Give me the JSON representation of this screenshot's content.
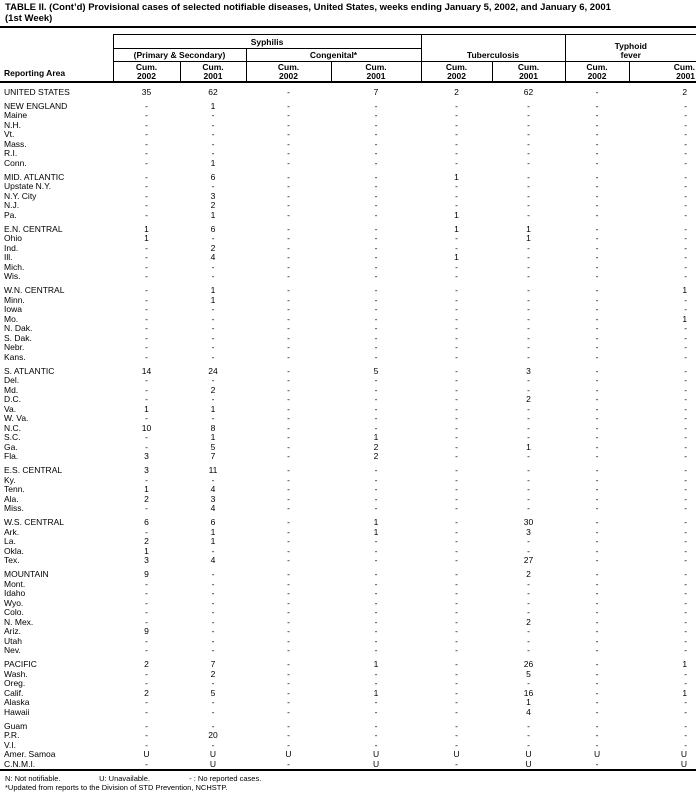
{
  "title": {
    "line1": "TABLE II. (Cont’d) Provisional cases of selected notifiable diseases, United States, weeks ending January 5, 2002, and January 6, 2001",
    "line2": "(1st Week)"
  },
  "header": {
    "reporting_area": "Reporting Area",
    "syphilis": "Syphilis",
    "primary_secondary": "(Primary & Secondary)",
    "congenital": "Congenital*",
    "tuberculosis": "Tuberculosis",
    "typhoid_line1": "Typhoid",
    "typhoid_line2": "fever",
    "cum_label": "Cum.",
    "years": [
      "2002",
      "2001",
      "2002",
      "2001",
      "2002",
      "2001",
      "2002",
      "2001"
    ]
  },
  "table": {
    "sections": [
      {
        "rows": [
          {
            "area": "UNITED STATES",
            "values": [
              "35",
              "62",
              "-",
              "7",
              "2",
              "62",
              "-",
              "2"
            ]
          }
        ]
      },
      {
        "rows": [
          {
            "area": "NEW ENGLAND",
            "values": [
              "-",
              "1",
              "-",
              "-",
              "-",
              "-",
              "-",
              "-"
            ]
          },
          {
            "area": "Maine",
            "values": [
              "-",
              "-",
              "-",
              "-",
              "-",
              "-",
              "-",
              "-"
            ]
          },
          {
            "area": "N.H.",
            "values": [
              "-",
              "-",
              "-",
              "-",
              "-",
              "-",
              "-",
              "-"
            ]
          },
          {
            "area": "Vt.",
            "values": [
              "-",
              "-",
              "-",
              "-",
              "-",
              "-",
              "-",
              "-"
            ]
          },
          {
            "area": "Mass.",
            "values": [
              "-",
              "-",
              "-",
              "-",
              "-",
              "-",
              "-",
              "-"
            ]
          },
          {
            "area": "R.I.",
            "values": [
              "-",
              "-",
              "-",
              "-",
              "-",
              "-",
              "-",
              "-"
            ]
          },
          {
            "area": "Conn.",
            "values": [
              "-",
              "1",
              "-",
              "-",
              "-",
              "-",
              "-",
              "-"
            ]
          }
        ]
      },
      {
        "rows": [
          {
            "area": "MID. ATLANTIC",
            "values": [
              "-",
              "6",
              "-",
              "-",
              "1",
              "-",
              "-",
              "-"
            ]
          },
          {
            "area": "Upstate N.Y.",
            "values": [
              "-",
              "-",
              "-",
              "-",
              "-",
              "-",
              "-",
              "-"
            ]
          },
          {
            "area": "N.Y. City",
            "values": [
              "-",
              "3",
              "-",
              "-",
              "-",
              "-",
              "-",
              "-"
            ]
          },
          {
            "area": "N.J.",
            "values": [
              "-",
              "2",
              "-",
              "-",
              "-",
              "-",
              "-",
              "-"
            ]
          },
          {
            "area": "Pa.",
            "values": [
              "-",
              "1",
              "-",
              "-",
              "1",
              "-",
              "-",
              "-"
            ]
          }
        ]
      },
      {
        "rows": [
          {
            "area": "E.N. CENTRAL",
            "values": [
              "1",
              "6",
              "-",
              "-",
              "1",
              "1",
              "-",
              "-"
            ]
          },
          {
            "area": "Ohio",
            "values": [
              "1",
              "-",
              "-",
              "-",
              "-",
              "1",
              "-",
              "-"
            ]
          },
          {
            "area": "Ind.",
            "values": [
              "-",
              "2",
              "-",
              "-",
              "-",
              "-",
              "-",
              "-"
            ]
          },
          {
            "area": "Ill.",
            "values": [
              "-",
              "4",
              "-",
              "-",
              "1",
              "-",
              "-",
              "-"
            ]
          },
          {
            "area": "Mich.",
            "values": [
              "-",
              "-",
              "-",
              "-",
              "-",
              "-",
              "-",
              "-"
            ]
          },
          {
            "area": "Wis.",
            "values": [
              "-",
              "-",
              "-",
              "-",
              "-",
              "-",
              "-",
              "-"
            ]
          }
        ]
      },
      {
        "rows": [
          {
            "area": "W.N. CENTRAL",
            "values": [
              "-",
              "1",
              "-",
              "-",
              "-",
              "-",
              "-",
              "1"
            ]
          },
          {
            "area": "Minn.",
            "values": [
              "-",
              "1",
              "-",
              "-",
              "-",
              "-",
              "-",
              "-"
            ]
          },
          {
            "area": "Iowa",
            "values": [
              "-",
              "-",
              "-",
              "-",
              "-",
              "-",
              "-",
              "-"
            ]
          },
          {
            "area": "Mo.",
            "values": [
              "-",
              "-",
              "-",
              "-",
              "-",
              "-",
              "-",
              "1"
            ]
          },
          {
            "area": "N. Dak.",
            "values": [
              "-",
              "-",
              "-",
              "-",
              "-",
              "-",
              "-",
              "-"
            ]
          },
          {
            "area": "S. Dak.",
            "values": [
              "-",
              "-",
              "-",
              "-",
              "-",
              "-",
              "-",
              "-"
            ]
          },
          {
            "area": "Nebr.",
            "values": [
              "-",
              "-",
              "-",
              "-",
              "-",
              "-",
              "-",
              "-"
            ]
          },
          {
            "area": "Kans.",
            "values": [
              "-",
              "-",
              "-",
              "-",
              "-",
              "-",
              "-",
              "-"
            ]
          }
        ]
      },
      {
        "rows": [
          {
            "area": "S. ATLANTIC",
            "values": [
              "14",
              "24",
              "-",
              "5",
              "-",
              "3",
              "-",
              "-"
            ]
          },
          {
            "area": "Del.",
            "values": [
              "-",
              "-",
              "-",
              "-",
              "-",
              "-",
              "-",
              "-"
            ]
          },
          {
            "area": "Md.",
            "values": [
              "-",
              "2",
              "-",
              "-",
              "-",
              "-",
              "-",
              "-"
            ]
          },
          {
            "area": "D.C.",
            "values": [
              "-",
              "-",
              "-",
              "-",
              "-",
              "2",
              "-",
              "-"
            ]
          },
          {
            "area": "Va.",
            "values": [
              "1",
              "1",
              "-",
              "-",
              "-",
              "-",
              "-",
              "-"
            ]
          },
          {
            "area": "W. Va.",
            "values": [
              "-",
              "-",
              "-",
              "-",
              "-",
              "-",
              "-",
              "-"
            ]
          },
          {
            "area": "N.C.",
            "values": [
              "10",
              "8",
              "-",
              "-",
              "-",
              "-",
              "-",
              "-"
            ]
          },
          {
            "area": "S.C.",
            "values": [
              "-",
              "1",
              "-",
              "1",
              "-",
              "-",
              "-",
              "-"
            ]
          },
          {
            "area": "Ga.",
            "values": [
              "-",
              "5",
              "-",
              "2",
              "-",
              "1",
              "-",
              "-"
            ]
          },
          {
            "area": "Fla.",
            "values": [
              "3",
              "7",
              "-",
              "2",
              "-",
              "-",
              "-",
              "-"
            ]
          }
        ]
      },
      {
        "rows": [
          {
            "area": "E.S. CENTRAL",
            "values": [
              "3",
              "11",
              "-",
              "-",
              "-",
              "-",
              "-",
              "-"
            ]
          },
          {
            "area": "Ky.",
            "values": [
              "-",
              "-",
              "-",
              "-",
              "-",
              "-",
              "-",
              "-"
            ]
          },
          {
            "area": "Tenn.",
            "values": [
              "1",
              "4",
              "-",
              "-",
              "-",
              "-",
              "-",
              "-"
            ]
          },
          {
            "area": "Ala.",
            "values": [
              "2",
              "3",
              "-",
              "-",
              "-",
              "-",
              "-",
              "-"
            ]
          },
          {
            "area": "Miss.",
            "values": [
              "-",
              "4",
              "-",
              "-",
              "-",
              "-",
              "-",
              "-"
            ]
          }
        ]
      },
      {
        "rows": [
          {
            "area": "W.S. CENTRAL",
            "values": [
              "6",
              "6",
              "-",
              "1",
              "-",
              "30",
              "-",
              "-"
            ]
          },
          {
            "area": "Ark.",
            "values": [
              "-",
              "1",
              "-",
              "1",
              "-",
              "3",
              "-",
              "-"
            ]
          },
          {
            "area": "La.",
            "values": [
              "2",
              "1",
              "-",
              "-",
              "-",
              "-",
              "-",
              "-"
            ]
          },
          {
            "area": "Okla.",
            "values": [
              "1",
              "-",
              "-",
              "-",
              "-",
              "-",
              "-",
              "-"
            ]
          },
          {
            "area": "Tex.",
            "values": [
              "3",
              "4",
              "-",
              "-",
              "-",
              "27",
              "-",
              "-"
            ]
          }
        ]
      },
      {
        "rows": [
          {
            "area": "MOUNTAIN",
            "values": [
              "9",
              "-",
              "-",
              "-",
              "-",
              "2",
              "-",
              "-"
            ]
          },
          {
            "area": "Mont.",
            "values": [
              "-",
              "-",
              "-",
              "-",
              "-",
              "-",
              "-",
              "-"
            ]
          },
          {
            "area": "Idaho",
            "values": [
              "-",
              "-",
              "-",
              "-",
              "-",
              "-",
              "-",
              "-"
            ]
          },
          {
            "area": "Wyo.",
            "values": [
              "-",
              "-",
              "-",
              "-",
              "-",
              "-",
              "-",
              "-"
            ]
          },
          {
            "area": "Colo.",
            "values": [
              "-",
              "-",
              "-",
              "-",
              "-",
              "-",
              "-",
              "-"
            ]
          },
          {
            "area": "N. Mex.",
            "values": [
              "-",
              "-",
              "-",
              "-",
              "-",
              "2",
              "-",
              "-"
            ]
          },
          {
            "area": "Ariz.",
            "values": [
              "9",
              "-",
              "-",
              "-",
              "-",
              "-",
              "-",
              "-"
            ]
          },
          {
            "area": "Utah",
            "values": [
              "-",
              "-",
              "-",
              "-",
              "-",
              "-",
              "-",
              "-"
            ]
          },
          {
            "area": "Nev.",
            "values": [
              "-",
              "-",
              "-",
              "-",
              "-",
              "-",
              "-",
              "-"
            ]
          }
        ]
      },
      {
        "rows": [
          {
            "area": "PACIFIC",
            "values": [
              "2",
              "7",
              "-",
              "1",
              "-",
              "26",
              "-",
              "1"
            ]
          },
          {
            "area": "Wash.",
            "values": [
              "-",
              "2",
              "-",
              "-",
              "-",
              "5",
              "-",
              "-"
            ]
          },
          {
            "area": "Oreg.",
            "values": [
              "-",
              "-",
              "-",
              "-",
              "-",
              "-",
              "-",
              "-"
            ]
          },
          {
            "area": "Calif.",
            "values": [
              "2",
              "5",
              "-",
              "1",
              "-",
              "16",
              "-",
              "1"
            ]
          },
          {
            "area": "Alaska",
            "values": [
              "-",
              "-",
              "-",
              "-",
              "-",
              "1",
              "-",
              "-"
            ]
          },
          {
            "area": "Hawaii",
            "values": [
              "-",
              "-",
              "-",
              "-",
              "-",
              "4",
              "-",
              "-"
            ]
          }
        ]
      },
      {
        "rows": [
          {
            "area": "Guam",
            "values": [
              "-",
              "-",
              "-",
              "-",
              "-",
              "-",
              "-",
              "-"
            ]
          },
          {
            "area": "P.R.",
            "values": [
              "-",
              "20",
              "-",
              "-",
              "-",
              "-",
              "-",
              "-"
            ]
          },
          {
            "area": "V.I.",
            "values": [
              "-",
              "-",
              "-",
              "-",
              "-",
              "-",
              "-",
              "-"
            ]
          },
          {
            "area": "Amer. Samoa",
            "values": [
              "U",
              "U",
              "U",
              "U",
              "U",
              "U",
              "U",
              "U"
            ]
          },
          {
            "area": "C.N.M.I.",
            "values": [
              "-",
              "U",
              "-",
              "U",
              "-",
              "U",
              "-",
              "U"
            ]
          }
        ]
      }
    ]
  },
  "footnotes": {
    "not_notifiable": "N: Not notifiable.",
    "unavailable": "U: Unavailable.",
    "no_reported": "- : No reported cases.",
    "updated": "*Updated from reports to the Division of STD Prevention, NCHSTP."
  }
}
